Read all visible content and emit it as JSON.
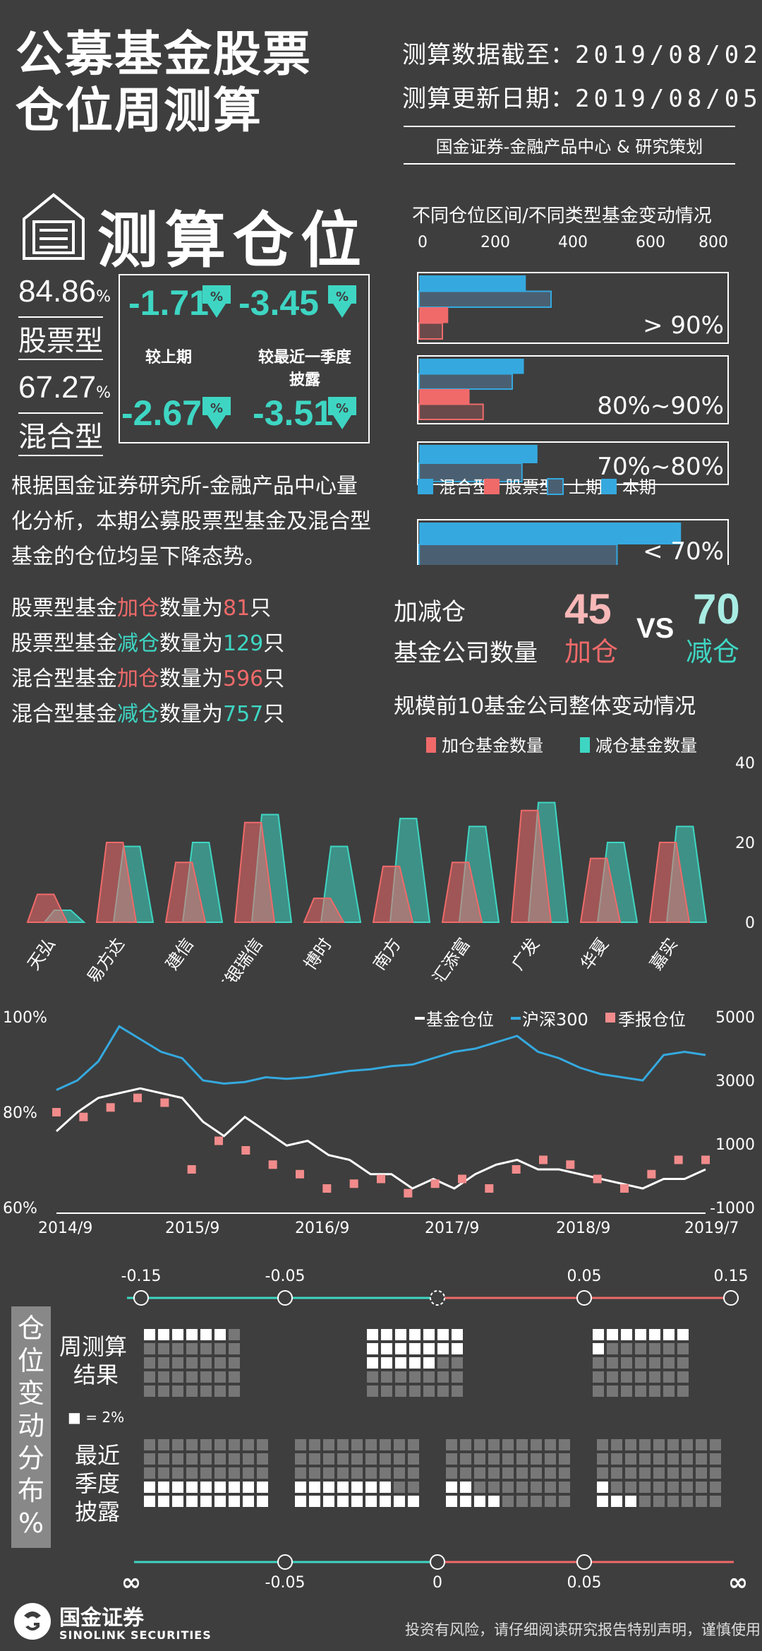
{
  "header": {
    "title_line1": "公募基金股票",
    "title_line2": "仓位周测算",
    "data_cutoff_label": "测算数据截至：",
    "data_cutoff": "2019/08/02",
    "update_label": "测算更新日期：",
    "update_date": "2019/08/05",
    "source": "国金证券-金融产品中心 & 研究策划"
  },
  "summary": {
    "heading": "测算仓位",
    "stock_pct": "84.86",
    "pct_unit": "%",
    "stock_label": "股票型",
    "mixed_pct": "67.27",
    "mixed_label": "混合型",
    "vs_last": "较上期",
    "vs_quarter": "较最近一季度",
    "vs_quarter2": "披露",
    "stock_chg_last": "-1.71",
    "stock_chg_quarter": "-3.45",
    "mixed_chg_last": "-2.67",
    "mixed_chg_quarter": "-3.51",
    "arrow_symbol": "%",
    "paragraph": "根据国金证券研究所-金融产品中心量化分析，本期公募股票型基金及混合型基金的仓位均呈下降态势。"
  },
  "stats": [
    {
      "pre": "股票型基金",
      "mid": "加仓",
      "post": "数量为",
      "num": "81",
      "unit": "只",
      "color": "#f06a6a"
    },
    {
      "pre": "股票型基金",
      "mid": "减仓",
      "post": "数量为",
      "num": "129",
      "unit": "只",
      "color": "#3ed6c3"
    },
    {
      "pre": "混合型基金",
      "mid": "加仓",
      "post": "数量为",
      "num": "596",
      "unit": "只",
      "color": "#f06a6a"
    },
    {
      "pre": "混合型基金",
      "mid": "减仓",
      "post": "数量为",
      "num": "757",
      "unit": "只",
      "color": "#3ed6c3"
    }
  ],
  "company": {
    "label1": "加减仓",
    "label2": "基金公司数量",
    "add_num": "45",
    "add_label": "加仓",
    "vs": "VS",
    "cut_num": "70",
    "cut_label": "减仓"
  },
  "chart_data": [
    {
      "type": "bar",
      "title": "不同仓位区间/不同类型基金变动情况",
      "xlim": [
        0,
        800
      ],
      "xticks": [
        "0",
        "200",
        "400",
        "600",
        "800"
      ],
      "categories": [
        "> 90%",
        "80%~90%",
        "70%~80%",
        "< 70%"
      ],
      "series": [
        {
          "name": "混合型 上期",
          "values": [
            275,
            270,
            305,
            675
          ]
        },
        {
          "name": "混合型 本期",
          "values": [
            340,
            240,
            265,
            510
          ]
        },
        {
          "name": "股票型 上期",
          "values": [
            60,
            165,
            0,
            0
          ]
        },
        {
          "name": "股票型 本期",
          "values": [
            75,
            130,
            0,
            0
          ]
        }
      ],
      "legend": [
        "混合型",
        "股票型",
        "上期",
        "本期"
      ],
      "legend_colors": [
        "#35a9df",
        "#f06a6a",
        "#4a6072",
        "#35a9df"
      ]
    },
    {
      "type": "bar",
      "title": "规模前10基金公司整体变动情况",
      "categories": [
        "天弘",
        "易方达",
        "建信",
        "工银瑞信",
        "博时",
        "南方",
        "汇添富",
        "广发",
        "华夏",
        "嘉实"
      ],
      "series": [
        {
          "name": "加仓基金数量",
          "values": [
            7,
            20,
            15,
            25,
            6,
            14,
            15,
            28,
            16,
            20
          ]
        },
        {
          "name": "减仓基金数量",
          "values": [
            3,
            19,
            20,
            27,
            19,
            26,
            24,
            30,
            20,
            24
          ]
        }
      ],
      "yticks": [
        "0",
        "20",
        "40"
      ],
      "ylim": [
        0,
        40
      ],
      "colors": {
        "add": "#f06a6a",
        "cut": "#3ed6c3"
      }
    },
    {
      "type": "line",
      "legend": [
        "基金仓位",
        "沪深300",
        "季报仓位"
      ],
      "x_labels": [
        "2014/9",
        "2015/9",
        "2016/9",
        "2017/9",
        "2018/9",
        "2019/7"
      ],
      "y_left_ticks": [
        "100%",
        "80%",
        "60%"
      ],
      "y_right_ticks": [
        "5000",
        "3000",
        "1000",
        "-1000"
      ],
      "ylim_left": [
        60,
        100
      ],
      "ylim_right": [
        -1000,
        5000
      ],
      "series": [
        {
          "name": "基金仓位",
          "values": [
            76,
            80,
            83,
            84,
            85,
            84,
            83,
            78,
            75,
            79,
            76,
            73,
            74,
            71,
            70,
            67,
            67,
            64,
            66,
            64,
            67,
            69,
            70,
            68,
            68,
            67,
            66,
            65,
            64,
            66,
            66,
            68
          ]
        },
        {
          "name": "沪深300",
          "values": [
            2700,
            3000,
            3600,
            4700,
            4300,
            3900,
            3700,
            3000,
            2900,
            2950,
            3100,
            3050,
            3100,
            3200,
            3300,
            3350,
            3450,
            3500,
            3700,
            3900,
            4000,
            4200,
            4400,
            3900,
            3700,
            3400,
            3200,
            3100,
            3000,
            3800,
            3900,
            3800
          ]
        },
        {
          "name": "季报仓位",
          "values": [
            80,
            79,
            81,
            83,
            82,
            68,
            74,
            72,
            69,
            67,
            64,
            65,
            66,
            63,
            65,
            66,
            64,
            68,
            70,
            69,
            66,
            64,
            67,
            70,
            70
          ]
        }
      ]
    }
  ],
  "distribution": {
    "side_label": "仓位变动分布%",
    "top_ticks": [
      "-0.15",
      "-0.05",
      "0.05",
      "0.15"
    ],
    "bottom_ticks": [
      "∞",
      "-0.05",
      "0",
      "0.05",
      "∞"
    ],
    "weekly_label1": "周测算",
    "weekly_label2": "结果",
    "legend_square": "■ = 2%",
    "quarter_label1": "最近",
    "quarter_label2": "季度",
    "quarter_label3": "披露",
    "left_color": "#3ed6c3",
    "right_color": "#f06a6a"
  },
  "footer": {
    "brand_cn": "国金证券",
    "brand_en": "SINOLINK SECURITIES",
    "disclaimer": "投资有风险，请仔细阅读研究报告特别声明，谨慎使用"
  }
}
